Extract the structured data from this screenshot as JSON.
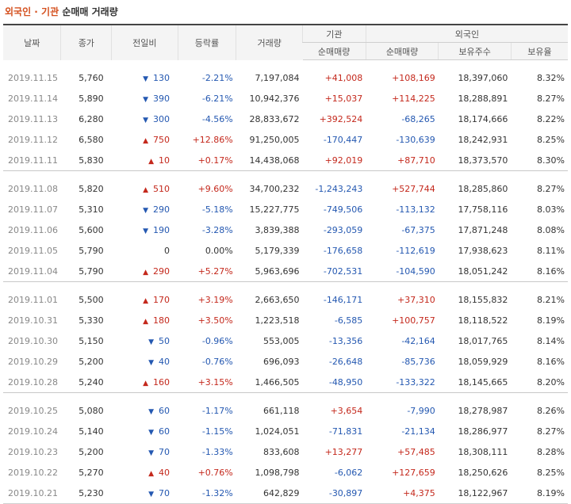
{
  "title": {
    "highlight": "외국인 · 기관",
    "rest": "순매매 거래량"
  },
  "headers": {
    "date": "날짜",
    "close": "종가",
    "change": "전일비",
    "rate": "등락률",
    "volume": "거래량",
    "inst_group": "기관",
    "foreign_group": "외국인",
    "inst_net": "순매매량",
    "foreign_net": "순매매량",
    "foreign_shares": "보유주수",
    "foreign_ratio": "보유율"
  },
  "colors": {
    "up": "#c4281c",
    "down": "#2458b1",
    "title": "#d4501e"
  },
  "groups": [
    [
      {
        "date": "2019.11.15",
        "close": "5,760",
        "dir": "down",
        "change": "130",
        "rate": "-2.21%",
        "volume": "7,197,084",
        "inst": "+41,008",
        "foreign": "+108,169",
        "shares": "18,397,060",
        "ratio": "8.32%"
      },
      {
        "date": "2019.11.14",
        "close": "5,890",
        "dir": "down",
        "change": "390",
        "rate": "-6.21%",
        "volume": "10,942,376",
        "inst": "+15,037",
        "foreign": "+114,225",
        "shares": "18,288,891",
        "ratio": "8.27%"
      },
      {
        "date": "2019.11.13",
        "close": "6,280",
        "dir": "down",
        "change": "300",
        "rate": "-4.56%",
        "volume": "28,833,672",
        "inst": "+392,524",
        "foreign": "-68,265",
        "shares": "18,174,666",
        "ratio": "8.22%"
      },
      {
        "date": "2019.11.12",
        "close": "6,580",
        "dir": "up",
        "change": "750",
        "rate": "+12.86%",
        "volume": "91,250,005",
        "inst": "-170,447",
        "foreign": "-130,639",
        "shares": "18,242,931",
        "ratio": "8.25%"
      },
      {
        "date": "2019.11.11",
        "close": "5,830",
        "dir": "up",
        "change": "10",
        "rate": "+0.17%",
        "volume": "14,438,068",
        "inst": "+92,019",
        "foreign": "+87,710",
        "shares": "18,373,570",
        "ratio": "8.30%"
      }
    ],
    [
      {
        "date": "2019.11.08",
        "close": "5,820",
        "dir": "up",
        "change": "510",
        "rate": "+9.60%",
        "volume": "34,700,232",
        "inst": "-1,243,243",
        "foreign": "+527,744",
        "shares": "18,285,860",
        "ratio": "8.27%"
      },
      {
        "date": "2019.11.07",
        "close": "5,310",
        "dir": "down",
        "change": "290",
        "rate": "-5.18%",
        "volume": "15,227,775",
        "inst": "-749,506",
        "foreign": "-113,132",
        "shares": "17,758,116",
        "ratio": "8.03%"
      },
      {
        "date": "2019.11.06",
        "close": "5,600",
        "dir": "down",
        "change": "190",
        "rate": "-3.28%",
        "volume": "3,839,388",
        "inst": "-293,059",
        "foreign": "-67,375",
        "shares": "17,871,248",
        "ratio": "8.08%"
      },
      {
        "date": "2019.11.05",
        "close": "5,790",
        "dir": "flat",
        "change": "0",
        "rate": "0.00%",
        "volume": "5,179,339",
        "inst": "-176,658",
        "foreign": "-112,619",
        "shares": "17,938,623",
        "ratio": "8.11%"
      },
      {
        "date": "2019.11.04",
        "close": "5,790",
        "dir": "up",
        "change": "290",
        "rate": "+5.27%",
        "volume": "5,963,696",
        "inst": "-702,531",
        "foreign": "-104,590",
        "shares": "18,051,242",
        "ratio": "8.16%"
      }
    ],
    [
      {
        "date": "2019.11.01",
        "close": "5,500",
        "dir": "up",
        "change": "170",
        "rate": "+3.19%",
        "volume": "2,663,650",
        "inst": "-146,171",
        "foreign": "+37,310",
        "shares": "18,155,832",
        "ratio": "8.21%"
      },
      {
        "date": "2019.10.31",
        "close": "5,330",
        "dir": "up",
        "change": "180",
        "rate": "+3.50%",
        "volume": "1,223,518",
        "inst": "-6,585",
        "foreign": "+100,757",
        "shares": "18,118,522",
        "ratio": "8.19%"
      },
      {
        "date": "2019.10.30",
        "close": "5,150",
        "dir": "down",
        "change": "50",
        "rate": "-0.96%",
        "volume": "553,005",
        "inst": "-13,356",
        "foreign": "-42,164",
        "shares": "18,017,765",
        "ratio": "8.14%"
      },
      {
        "date": "2019.10.29",
        "close": "5,200",
        "dir": "down",
        "change": "40",
        "rate": "-0.76%",
        "volume": "696,093",
        "inst": "-26,648",
        "foreign": "-85,736",
        "shares": "18,059,929",
        "ratio": "8.16%"
      },
      {
        "date": "2019.10.28",
        "close": "5,240",
        "dir": "up",
        "change": "160",
        "rate": "+3.15%",
        "volume": "1,466,505",
        "inst": "-48,950",
        "foreign": "-133,322",
        "shares": "18,145,665",
        "ratio": "8.20%"
      }
    ],
    [
      {
        "date": "2019.10.25",
        "close": "5,080",
        "dir": "down",
        "change": "60",
        "rate": "-1.17%",
        "volume": "661,118",
        "inst": "+3,654",
        "foreign": "-7,990",
        "shares": "18,278,987",
        "ratio": "8.26%"
      },
      {
        "date": "2019.10.24",
        "close": "5,140",
        "dir": "down",
        "change": "60",
        "rate": "-1.15%",
        "volume": "1,024,051",
        "inst": "-71,831",
        "foreign": "-21,134",
        "shares": "18,286,977",
        "ratio": "8.27%"
      },
      {
        "date": "2019.10.23",
        "close": "5,200",
        "dir": "down",
        "change": "70",
        "rate": "-1.33%",
        "volume": "833,608",
        "inst": "+13,277",
        "foreign": "+57,485",
        "shares": "18,308,111",
        "ratio": "8.28%"
      },
      {
        "date": "2019.10.22",
        "close": "5,270",
        "dir": "up",
        "change": "40",
        "rate": "+0.76%",
        "volume": "1,098,798",
        "inst": "-6,062",
        "foreign": "+127,659",
        "shares": "18,250,626",
        "ratio": "8.25%"
      },
      {
        "date": "2019.10.21",
        "close": "5,230",
        "dir": "down",
        "change": "70",
        "rate": "-1.32%",
        "volume": "642,829",
        "inst": "-30,897",
        "foreign": "+4,375",
        "shares": "18,122,967",
        "ratio": "8.19%"
      }
    ]
  ]
}
